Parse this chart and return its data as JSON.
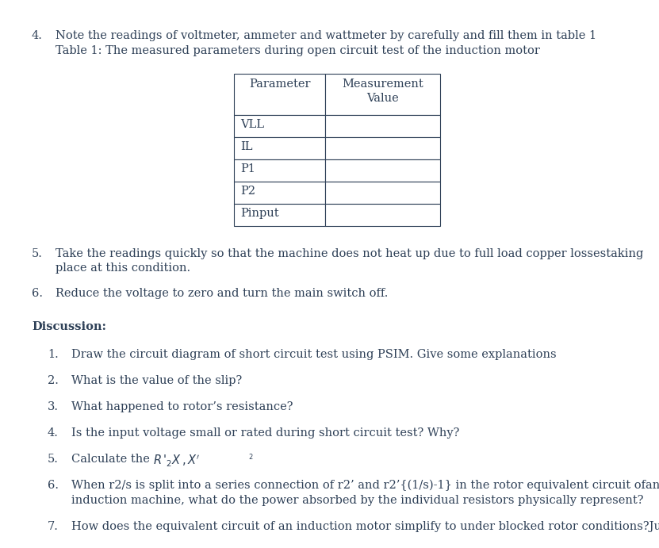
{
  "bg_color": "#ffffff",
  "text_color": "#2e4057",
  "item4_line1": "Note the readings of voltmeter, ammeter and wattmeter by carefully and fill them in table 1",
  "item4_line2": "Table 1: The measured parameters during open circuit test of the induction motor",
  "table_headers": [
    "Parameter",
    "Measurement\nValue"
  ],
  "table_rows": [
    "VLL",
    "IL",
    "P1",
    "P2",
    "Pinput"
  ],
  "item5_line1": "Take the readings quickly so that the machine does not heat up due to full load copper lossestaking",
  "item5_line2": "place at this condition.",
  "item6": "Reduce the voltage to zero and turn the main switch off.",
  "discussion_label": "Discussion:",
  "disc_items": [
    "Draw the circuit diagram of short circuit test using PSIM. Give some explanations",
    "What is the value of the slip?",
    "What happened to rotor’s resistance?",
    "Is the input voltage small or rated during short circuit test? Why?",
    "Calculate the ",
    "When r2/s is split into a series connection of r2’ and r2’{(1/s)-1} in the rotor equivalent circuit ofan",
    "induction machine, what do the power absorbed by the individual resistors physically represent?",
    "How does the equivalent circuit of an induction motor simplify to under blocked rotor conditions?Justify."
  ],
  "fontsize": 10.5,
  "font_family": "DejaVu Serif"
}
